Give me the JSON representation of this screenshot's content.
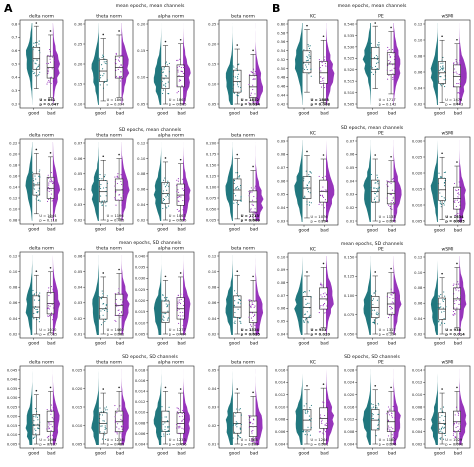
{
  "figure": {
    "panel_labels": [
      "A",
      "B"
    ],
    "group_labels": [
      "good",
      "bad"
    ],
    "colors": {
      "good": "#0e6b73",
      "bad": "#8e24b5",
      "edge": "#222222"
    }
  },
  "chart_data": [
    {
      "panel": "A",
      "row_title": "mean epochs, mean channels",
      "title": "delta norm",
      "type": "violin-box",
      "categories": [
        "good",
        "bad"
      ],
      "yticks": [
        "0.2",
        "0.3",
        "0.4",
        "0.5",
        "0.6",
        "0.7",
        "0.8"
      ],
      "stat": [
        "U = 861",
        "p = 0.047"
      ],
      "bold": true,
      "gmed": 0.56,
      "bmed": 0.46
    },
    {
      "panel": "A",
      "row_title": "mean epochs, mean channels",
      "title": "theta norm",
      "type": "violin-box",
      "categories": [
        "good",
        "bad"
      ],
      "yticks": [
        "0.10",
        "0.15",
        "0.20",
        "0.25",
        "0.30"
      ],
      "stat": [
        "U = 1865",
        "p = 0.094"
      ],
      "bold": false,
      "gmed": 0.42,
      "bmed": 0.46
    },
    {
      "panel": "A",
      "row_title": "mean epochs, mean channels",
      "title": "alpha norm",
      "type": "violin-box",
      "categories": [
        "good",
        "bad"
      ],
      "yticks": [
        "0.05",
        "0.10",
        "0.15",
        "0.20"
      ],
      "stat": [
        "U = 1863",
        "p = 0.265"
      ],
      "bold": false,
      "gmed": 0.34,
      "bmed": 0.36
    },
    {
      "panel": "A",
      "row_title": "mean epochs, mean channels",
      "title": "beta norm",
      "type": "violin-box",
      "categories": [
        "good",
        "bad"
      ],
      "yticks": [
        "0.05",
        "0.10",
        "0.15",
        "0.20",
        "0.25"
      ],
      "stat": [
        "U = 1852",
        "p = 0.014"
      ],
      "bold": true,
      "gmed": 0.3,
      "bmed": 0.24
    },
    {
      "panel": "A",
      "row_title": "SD epochs, mean channels",
      "title": "delta norm",
      "type": "violin-box",
      "categories": [
        "good",
        "bad"
      ],
      "yticks": [
        "0.08",
        "0.10",
        "0.12",
        "0.14",
        "0.16",
        "0.18",
        "0.20",
        "0.22"
      ],
      "stat": [
        "U = 1044",
        "p = 0.118"
      ],
      "bold": false,
      "gmed": 0.46,
      "bmed": 0.42
    },
    {
      "panel": "A",
      "row_title": "SD epochs, mean channels",
      "title": "theta norm",
      "type": "violin-box",
      "categories": [
        "good",
        "bad"
      ],
      "yticks": [
        "0.02",
        "0.03",
        "0.04",
        "0.05",
        "0.06",
        "0.07"
      ],
      "stat": [
        "U = 1196",
        "p = 0.465"
      ],
      "bold": false,
      "gmed": 0.38,
      "bmed": 0.4
    },
    {
      "panel": "A",
      "row_title": "SD epochs, mean channels",
      "title": "alpha norm",
      "type": "violin-box",
      "categories": [
        "good",
        "bad"
      ],
      "yticks": [
        "0.02",
        "0.04",
        "0.06",
        "0.08",
        "0.10",
        "0.12"
      ],
      "stat": [
        "U = 1063",
        "p = 0.325"
      ],
      "bold": false,
      "gmed": 0.36,
      "bmed": 0.34
    },
    {
      "panel": "A",
      "row_title": "SD epochs, mean channels",
      "title": "beta norm",
      "type": "violin-box",
      "categories": [
        "good",
        "bad"
      ],
      "yticks": [
        "0.025",
        "0.050",
        "0.075",
        "0.100",
        "0.125",
        "0.150",
        "0.175",
        "0.200"
      ],
      "stat": [
        "U = 1713",
        "p = 0.009"
      ],
      "bold": true,
      "gmed": 0.4,
      "bmed": 0.26
    },
    {
      "panel": "A",
      "row_title": "mean epochs, SD channels",
      "title": "delta norm",
      "type": "violin-box",
      "categories": [
        "good",
        "bad"
      ],
      "yticks": [
        "0.02",
        "0.04",
        "0.06",
        "0.08",
        "0.10",
        "0.12"
      ],
      "stat": [
        "U = 1010",
        "p = 0.085"
      ],
      "bold": false,
      "gmed": 0.36,
      "bmed": 0.4
    },
    {
      "panel": "A",
      "row_title": "mean epochs, SD channels",
      "title": "theta norm",
      "type": "violin-box",
      "categories": [
        "good",
        "bad"
      ],
      "yticks": [
        "0.01",
        "0.02",
        "0.03",
        "0.04",
        "0.05",
        "0.06"
      ],
      "stat": [
        "U = 1460",
        "p = 0.362"
      ],
      "bold": false,
      "gmed": 0.34,
      "bmed": 0.38
    },
    {
      "panel": "A",
      "row_title": "mean epochs, SD channels",
      "title": "alpha norm",
      "type": "violin-box",
      "categories": [
        "good",
        "bad"
      ],
      "yticks": [
        "0.005",
        "0.010",
        "0.015",
        "0.020",
        "0.025",
        "0.030",
        "0.035",
        "0.040"
      ],
      "stat": [
        "U = 1277",
        "p = 0.404"
      ],
      "bold": false,
      "gmed": 0.3,
      "bmed": 0.34
    },
    {
      "panel": "A",
      "row_title": "mean epochs, SD channels",
      "title": "beta norm",
      "type": "violin-box",
      "categories": [
        "good",
        "bad"
      ],
      "yticks": [
        "0.02",
        "0.04",
        "0.06",
        "0.08",
        "0.10",
        "0.12"
      ],
      "stat": [
        "U = 1534",
        "p = 0.025"
      ],
      "bold": true,
      "gmed": 0.36,
      "bmed": 0.3
    },
    {
      "panel": "A",
      "row_title": "SD epochs, SD channels",
      "title": "delta norm",
      "type": "violin-box",
      "categories": [
        "good",
        "bad"
      ],
      "yticks": [
        "0.005",
        "0.010",
        "0.015",
        "0.020",
        "0.025",
        "0.030",
        "0.035",
        "0.040",
        "0.045"
      ],
      "stat": [
        "U = 1064",
        "p = 0.137"
      ],
      "bold": false,
      "gmed": 0.28,
      "bmed": 0.32
    },
    {
      "panel": "A",
      "row_title": "SD epochs, SD channels",
      "title": "theta norm",
      "type": "violin-box",
      "categories": [
        "good",
        "bad"
      ],
      "yticks": [
        "0.005",
        "0.010",
        "0.015",
        "0.020",
        "0.025"
      ],
      "stat": [
        "U = 1218",
        "p = 0.485"
      ],
      "bold": false,
      "gmed": 0.3,
      "bmed": 0.32
    },
    {
      "panel": "A",
      "row_title": "SD epochs, SD channels",
      "title": "alpha norm",
      "type": "violin-box",
      "categories": [
        "good",
        "bad"
      ],
      "yticks": [
        "0.004",
        "0.006",
        "0.008",
        "0.010",
        "0.012",
        "0.014",
        "0.016",
        "0.018"
      ],
      "stat": [
        "U = 1233",
        "p = 0.456"
      ],
      "bold": false,
      "gmed": 0.32,
      "bmed": 0.3
    },
    {
      "panel": "A",
      "row_title": "SD epochs, SD channels",
      "title": "beta norm",
      "type": "violin-box",
      "categories": [
        "good",
        "bad"
      ],
      "yticks": [
        "0.01",
        "0.02",
        "0.03",
        "0.04",
        "0.05"
      ],
      "stat": [
        "U = 1368",
        "p = 0.103"
      ],
      "bold": false,
      "gmed": 0.3,
      "bmed": 0.26
    },
    {
      "panel": "B",
      "row_title": "mean epochs, mean channels",
      "title": "KC",
      "type": "violin-box",
      "categories": [
        "good",
        "bad"
      ],
      "yticks": [
        "0.42",
        "0.44",
        "0.46",
        "0.48",
        "0.50",
        "0.52",
        "0.54",
        "0.56",
        "0.58",
        "0.60"
      ],
      "stat": [
        "U = 1888",
        "p = 0.008"
      ],
      "bold": true,
      "gmed": 0.52,
      "bmed": 0.4
    },
    {
      "panel": "B",
      "row_title": "mean epochs, mean channels",
      "title": "PE",
      "type": "violin-box",
      "categories": [
        "good",
        "bad"
      ],
      "yticks": [
        "0.505",
        "0.510",
        "0.515",
        "0.520",
        "0.525",
        "0.530",
        "0.535",
        "0.540"
      ],
      "stat": [
        "U = 1717",
        "p = 0.142"
      ],
      "bold": false,
      "gmed": 0.56,
      "bmed": 0.5
    },
    {
      "panel": "B",
      "row_title": "mean epochs, mean channels",
      "title": "wSMI",
      "type": "violin-box",
      "categories": [
        "good",
        "bad"
      ],
      "yticks": [
        "0.02",
        "0.04",
        "0.06",
        "0.08",
        "0.10",
        "0.12"
      ],
      "stat": [
        "U = 1476",
        "p = 0.443"
      ],
      "bold": false,
      "gmed": 0.4,
      "bmed": 0.36
    },
    {
      "panel": "B",
      "row_title": "SD epochs, mean channels",
      "title": "KC",
      "type": "violin-box",
      "categories": [
        "good",
        "bad"
      ],
      "yticks": [
        "0.03",
        "0.04",
        "0.05",
        "0.06",
        "0.07",
        "0.08",
        "0.09"
      ],
      "stat": [
        "U = 1076",
        "p = 0.294"
      ],
      "bold": false,
      "gmed": 0.42,
      "bmed": 0.38
    },
    {
      "panel": "B",
      "row_title": "SD epochs, mean channels",
      "title": "PE",
      "type": "violin-box",
      "categories": [
        "good",
        "bad"
      ],
      "yticks": [
        "0.01",
        "0.02",
        "0.03",
        "0.04",
        "0.05",
        "0.06",
        "0.07"
      ],
      "stat": [
        "U = 1133",
        "p = 0.375"
      ],
      "bold": false,
      "gmed": 0.38,
      "bmed": 0.36
    },
    {
      "panel": "B",
      "row_title": "SD epochs, mean channels",
      "title": "wSMI",
      "type": "violin-box",
      "categories": [
        "good",
        "bad"
      ],
      "yticks": [
        "0.005",
        "0.010",
        "0.015",
        "0.020",
        "0.025",
        "0.030"
      ],
      "stat": [
        "U = 1634",
        "p = 0.035"
      ],
      "bold": true,
      "gmed": 0.4,
      "bmed": 0.3
    },
    {
      "panel": "B",
      "row_title": "mean epochs, SD channels",
      "title": "KC",
      "type": "violin-box",
      "categories": [
        "good",
        "bad"
      ],
      "yticks": [
        "0.04",
        "0.05",
        "0.06",
        "0.07",
        "0.08",
        "0.09",
        "0.10"
      ],
      "stat": [
        "U = 953",
        "p = 0.020"
      ],
      "bold": true,
      "gmed": 0.36,
      "bmed": 0.46
    },
    {
      "panel": "B",
      "row_title": "mean epochs, SD channels",
      "title": "PE",
      "type": "violin-box",
      "categories": [
        "good",
        "bad"
      ],
      "yticks": [
        "0.050",
        "0.075",
        "0.100",
        "0.125",
        "0.150"
      ],
      "stat": [
        "U = 1317",
        "p = 0.394"
      ],
      "bold": false,
      "gmed": 0.36,
      "bmed": 0.4
    },
    {
      "panel": "B",
      "row_title": "mean epochs, SD channels",
      "title": "wSMI",
      "type": "violin-box",
      "categories": [
        "good",
        "bad"
      ],
      "yticks": [
        "0.02",
        "0.04",
        "0.06",
        "0.08",
        "0.10",
        "0.12"
      ],
      "stat": [
        "U = 938",
        "p = 0.014"
      ],
      "bold": true,
      "gmed": 0.34,
      "bmed": 0.46
    },
    {
      "panel": "B",
      "row_title": "SD epochs, SD channels",
      "title": "KC",
      "type": "violin-box",
      "categories": [
        "good",
        "bad"
      ],
      "yticks": [
        "0.004",
        "0.006",
        "0.008",
        "0.010",
        "0.012",
        "0.014",
        "0.016"
      ],
      "stat": [
        "U = 1244",
        "p = 0.501"
      ],
      "bold": false,
      "gmed": 0.34,
      "bmed": 0.36
    },
    {
      "panel": "B",
      "row_title": "SD epochs, SD channels",
      "title": "PE",
      "type": "violin-box",
      "categories": [
        "good",
        "bad"
      ],
      "yticks": [
        "0.004",
        "0.008",
        "0.012",
        "0.016",
        "0.020",
        "0.024",
        "0.028"
      ],
      "stat": [
        "U = 1180",
        "p = 0.376"
      ],
      "bold": false,
      "gmed": 0.34,
      "bmed": 0.32
    },
    {
      "panel": "B",
      "row_title": "SD epochs, SD channels",
      "title": "wSMI",
      "type": "violin-box",
      "categories": [
        "good",
        "bad"
      ],
      "yticks": [
        "0.002",
        "0.004",
        "0.006",
        "0.008",
        "0.010",
        "0.012",
        "0.014"
      ],
      "stat": [
        "U = 1029",
        "p = 0.098"
      ],
      "bold": false,
      "gmed": 0.3,
      "bmed": 0.32
    }
  ]
}
